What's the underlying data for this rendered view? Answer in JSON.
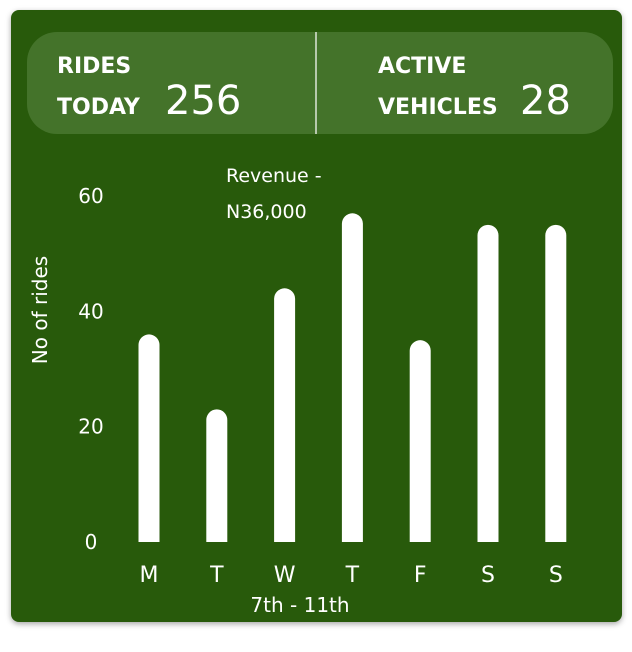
{
  "stats": {
    "rides": {
      "label_line1": "RIDES",
      "label_line2": "TODAY",
      "value": "256"
    },
    "vehicles": {
      "label_line1": "ACTIVE",
      "label_line2": "VEHICLES",
      "value": "28"
    }
  },
  "colors": {
    "card": "#285a0b",
    "stats_bg": "#44732a",
    "bar": "#ffffff"
  },
  "chart_data": {
    "type": "bar",
    "categories": [
      "M",
      "T",
      "W",
      "T",
      "F",
      "S",
      "S"
    ],
    "values": [
      36,
      23,
      44,
      57,
      35,
      55,
      55
    ],
    "yticks": [
      "60",
      "40",
      "20",
      "0"
    ],
    "ylim": [
      0,
      60
    ],
    "ylabel": "No of rides",
    "xlabel": "7th - 11th",
    "annotation": {
      "line1": "Revenue -",
      "line2": "N36,000"
    },
    "grid": false
  }
}
